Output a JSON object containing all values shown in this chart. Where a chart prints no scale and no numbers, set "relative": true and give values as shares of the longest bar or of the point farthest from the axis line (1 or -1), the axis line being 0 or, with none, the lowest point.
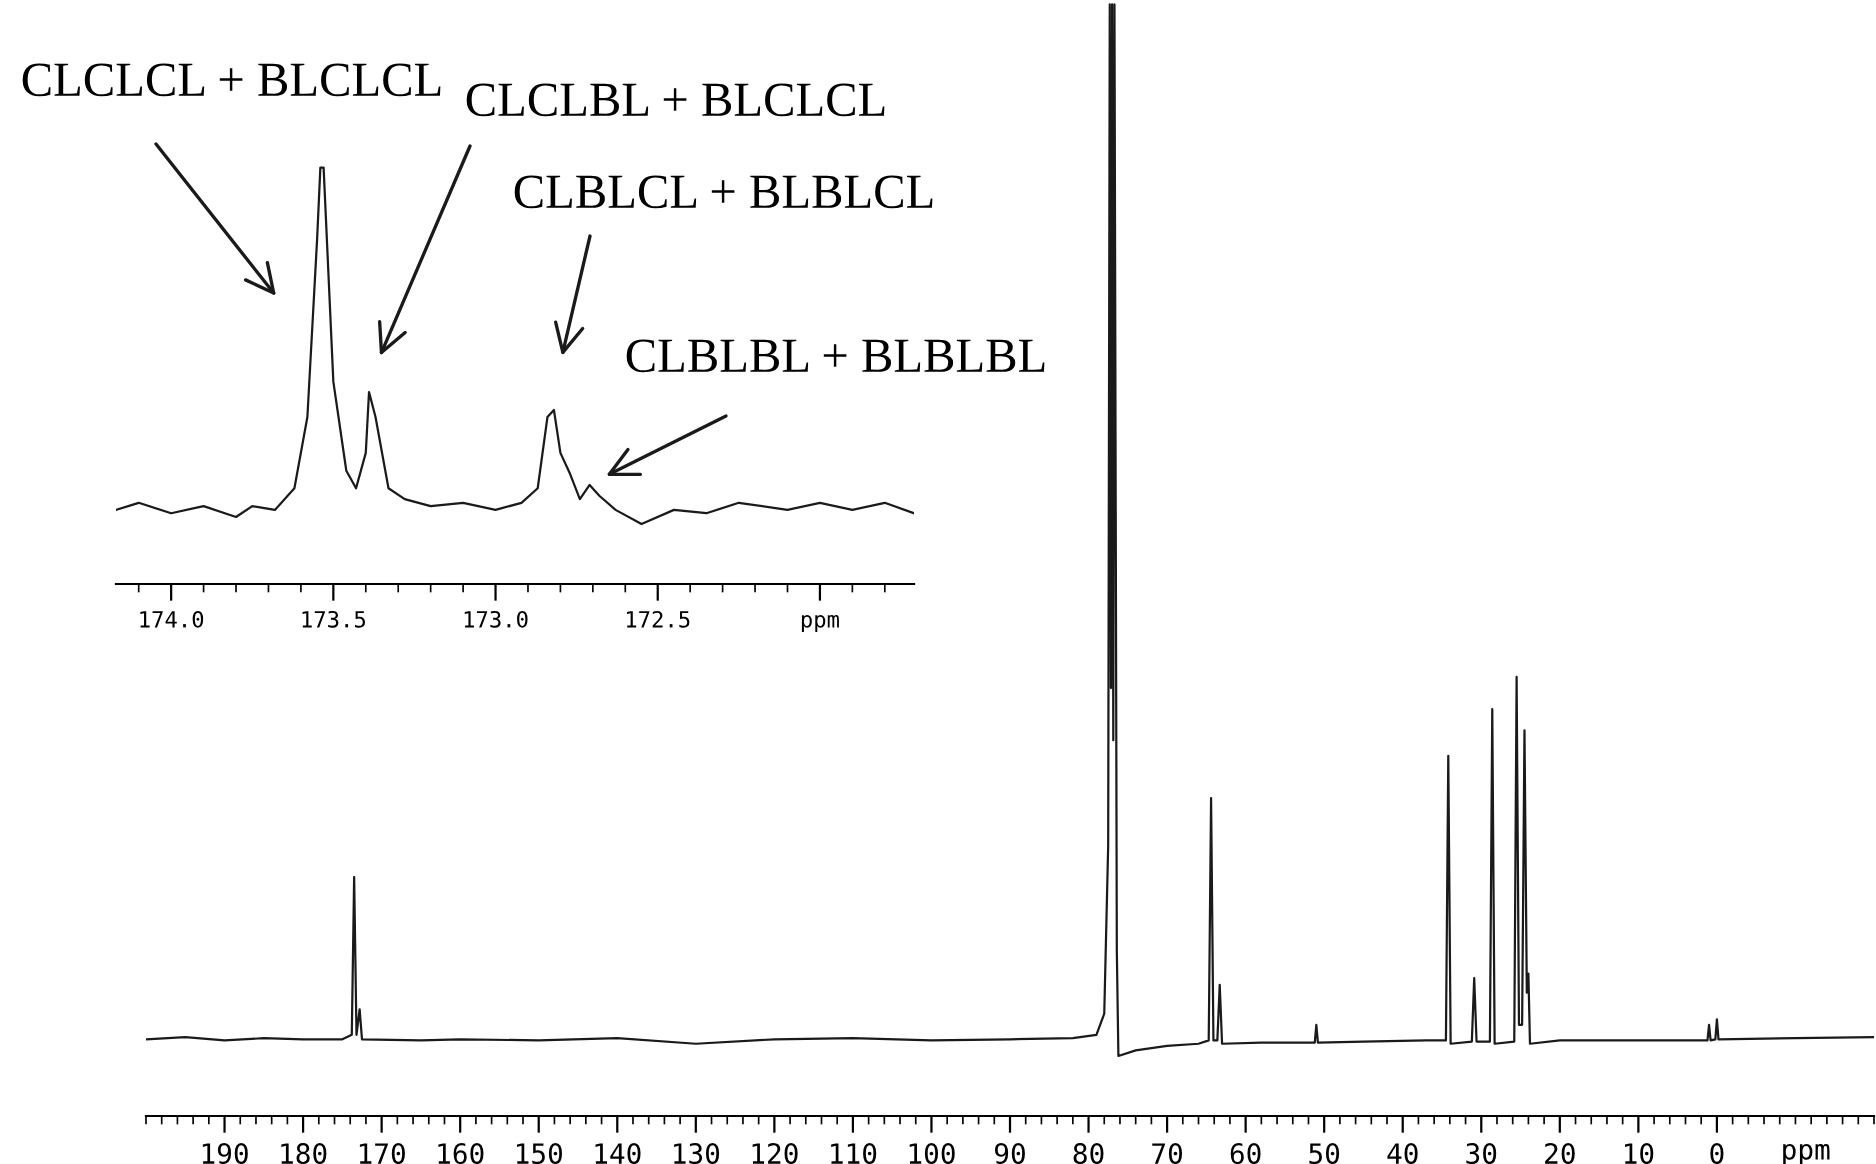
{
  "chart_data": [
    {
      "type": "line",
      "relative": true,
      "xlim": [
        200,
        -20
      ],
      "xticks": [
        190,
        180,
        170,
        160,
        150,
        140,
        130,
        120,
        110,
        100,
        90,
        80,
        70,
        60,
        50,
        40,
        30,
        20,
        10,
        0
      ],
      "xlabel": "ppm",
      "grid": false,
      "series": [
        {
          "color": "#1a1a1a",
          "x": [
            200,
            195,
            190,
            185,
            180,
            175,
            173.8,
            173.5,
            173.2,
            172.8,
            172.5,
            165,
            160,
            150,
            140,
            130,
            120,
            110,
            100,
            90,
            82,
            79,
            78,
            77.5,
            77.3,
            77.15,
            77.0,
            76.85,
            76.7,
            76.4,
            76.2,
            74,
            70,
            66,
            64.7,
            64.4,
            64.1,
            63.6,
            63.3,
            63.0,
            58,
            51.2,
            51,
            50.8,
            45,
            37,
            34.5,
            34.2,
            33.9,
            31.2,
            30.9,
            30.6,
            28.9,
            28.6,
            28.3,
            25.8,
            25.5,
            25.2,
            24.8,
            24.5,
            24.2,
            24.0,
            23.8,
            20,
            10,
            1.2,
            1.0,
            0.8,
            0.2,
            0,
            -0.2,
            -10,
            -20
          ],
          "values": [
            0.069,
            0.071,
            0.068,
            0.07,
            0.069,
            0.069,
            0.073,
            0.215,
            0.073,
            0.096,
            0.069,
            0.068,
            0.069,
            0.068,
            0.07,
            0.065,
            0.069,
            0.07,
            0.068,
            0.069,
            0.07,
            0.073,
            0.092,
            0.243,
            1,
            0.385,
            1,
            0.338,
            1,
            0.149,
            0.054,
            0.059,
            0.063,
            0.065,
            0.068,
            0.286,
            0.068,
            0.068,
            0.118,
            0.065,
            0.066,
            0.066,
            0.082,
            0.066,
            0.067,
            0.068,
            0.068,
            0.324,
            0.065,
            0.067,
            0.124,
            0.067,
            0.067,
            0.366,
            0.065,
            0.067,
            0.395,
            0.082,
            0.082,
            0.347,
            0.111,
            0.128,
            0.065,
            0.068,
            0.068,
            0.068,
            0.082,
            0.068,
            0.069,
            0.087,
            0.069,
            0.07,
            0.071
          ]
        }
      ]
    },
    {
      "type": "line",
      "relative": true,
      "xlim": [
        174.17,
        171.71
      ],
      "xticks": [
        {
          "value": 174.0,
          "label": "174.0"
        },
        173.5,
        {
          "value": 173.0,
          "label": "173.0"
        },
        172.5,
        {
          "value": 172.0,
          "label": "ppm"
        }
      ],
      "grid": false,
      "series": [
        {
          "color": "#1a1a1a",
          "x": [
            174.17,
            174.1,
            174.0,
            173.9,
            173.8,
            173.75,
            173.68,
            173.62,
            173.58,
            173.55,
            173.54,
            173.53,
            173.5,
            173.46,
            173.43,
            173.4,
            173.39,
            173.37,
            173.33,
            173.28,
            173.2,
            173.1,
            173.0,
            172.92,
            172.87,
            172.84,
            172.82,
            172.8,
            172.77,
            172.74,
            172.71,
            172.68,
            172.63,
            172.55,
            172.45,
            172.35,
            172.25,
            172.1,
            172.0,
            171.9,
            171.8,
            171.71
          ],
          "values": [
            0.178,
            0.195,
            0.17,
            0.187,
            0.161,
            0.187,
            0.178,
            0.23,
            0.401,
            0.829,
            1,
            1,
            0.486,
            0.272,
            0.23,
            0.315,
            0.461,
            0.401,
            0.23,
            0.204,
            0.187,
            0.195,
            0.178,
            0.195,
            0.23,
            0.401,
            0.418,
            0.315,
            0.264,
            0.204,
            0.238,
            0.212,
            0.178,
            0.144,
            0.178,
            0.17,
            0.195,
            0.178,
            0.195,
            0.178,
            0.195,
            0.17
          ]
        }
      ],
      "annotations": [
        "CLCLCL + BLCLCL",
        "CLCLBL + BLCLCL",
        "CLBLCL + BLBLCL",
        "CLBLBL + BLBLBL"
      ]
    }
  ]
}
